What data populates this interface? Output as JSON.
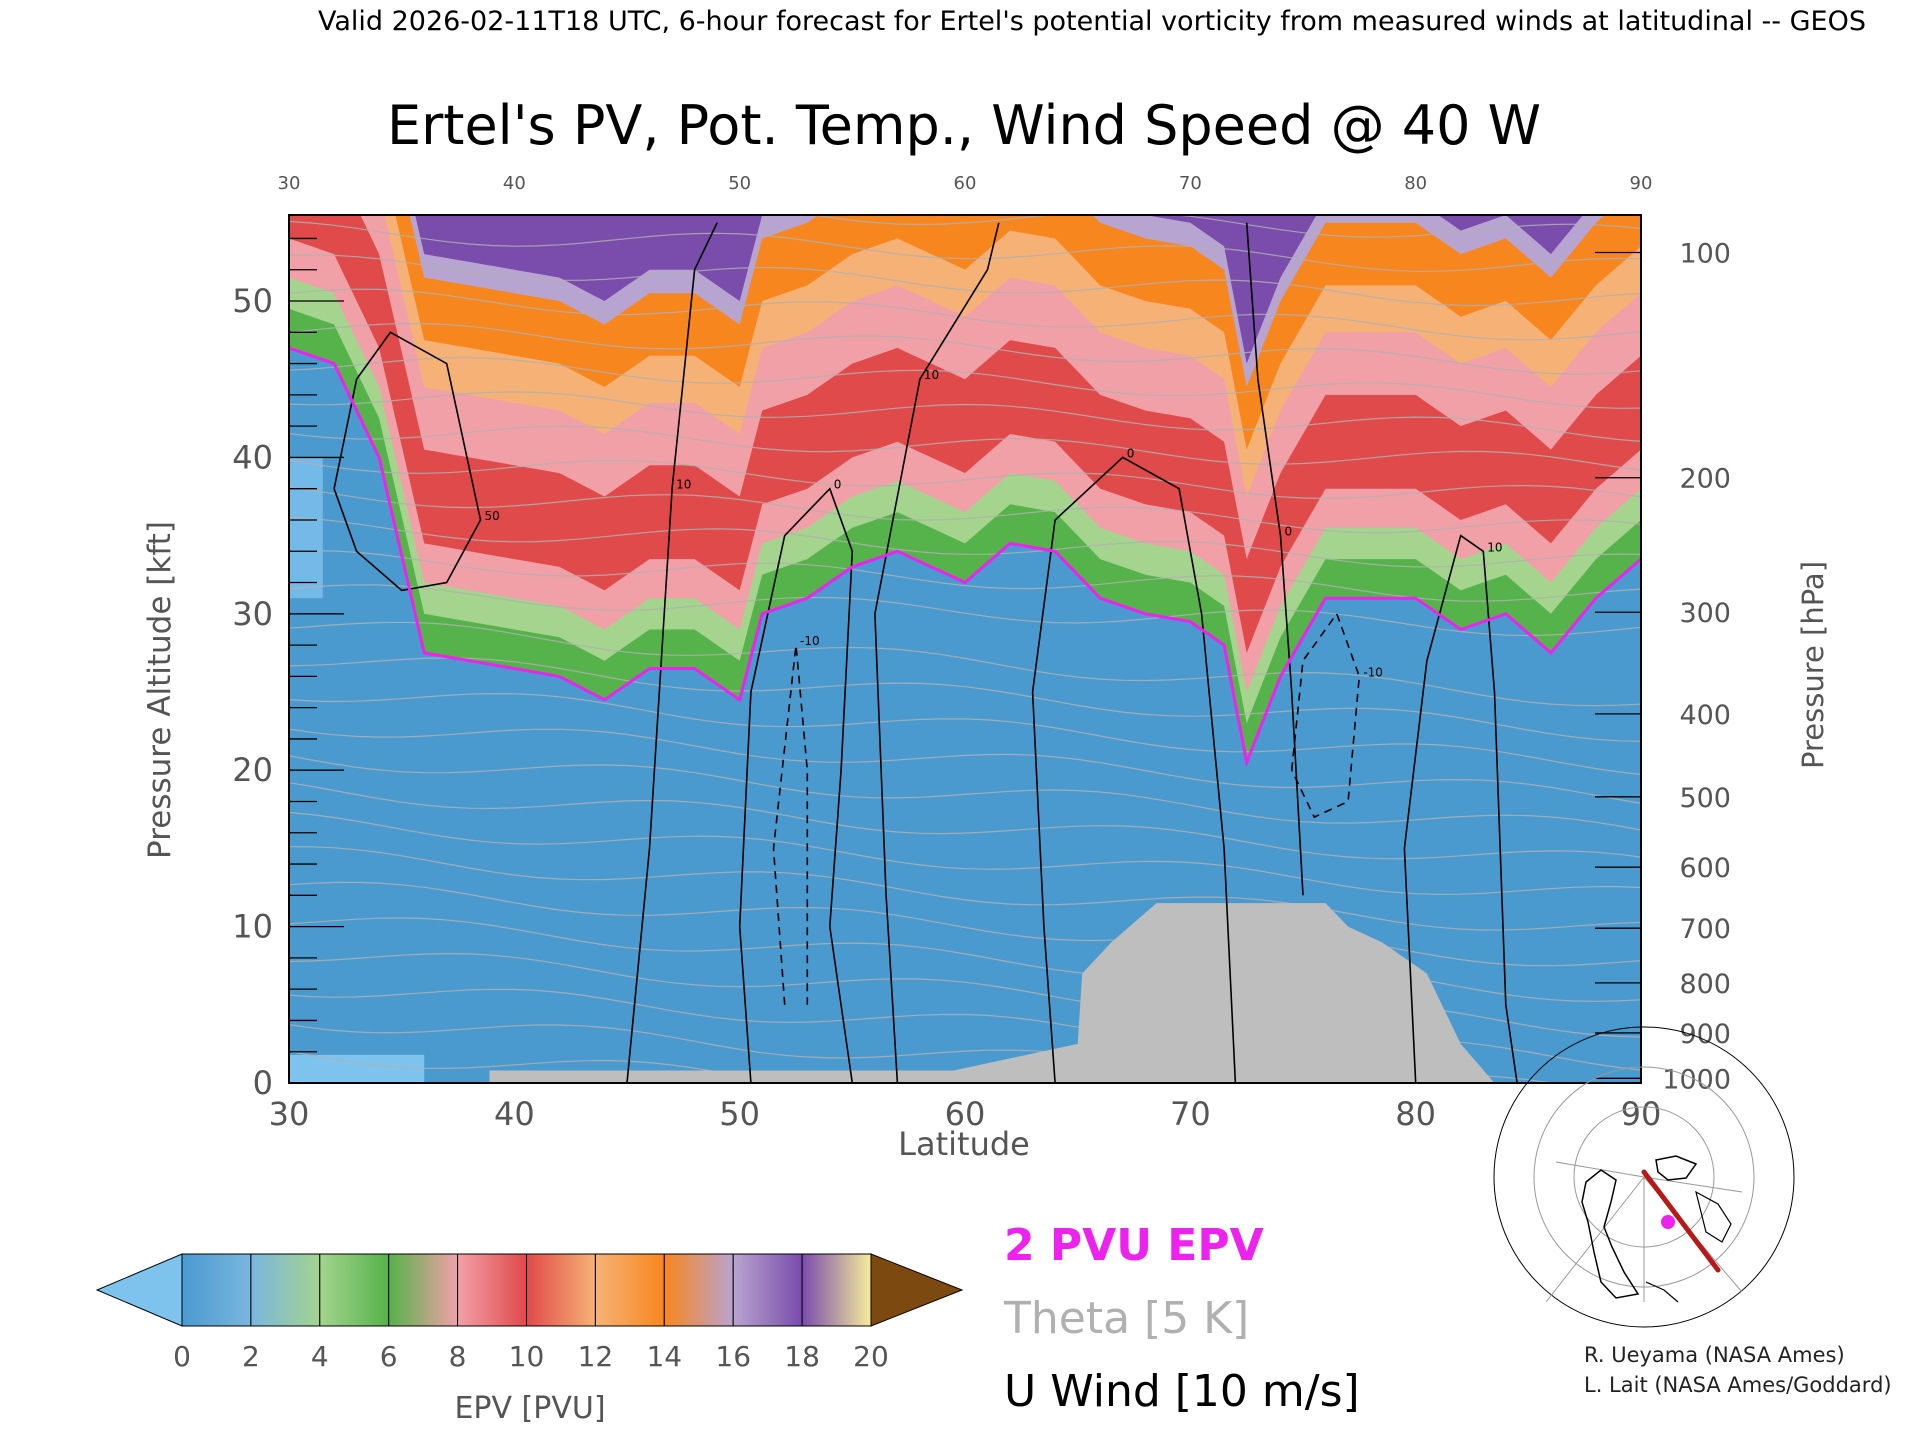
{
  "header": {
    "valid_line": "Valid 2026-02-11T18 UTC, 6-hour forecast for Ertel's potential vorticity from measured winds at latitudinal -- GEOS"
  },
  "chart_data": {
    "type": "heatmap",
    "title": "Ertel's PV, Pot. Temp., Wind Speed @ 40 W",
    "xlabel": "Latitude",
    "ylabel": "Pressure Altitude [kft]",
    "ylabel_right": "Pressure [hPa]",
    "xlim": [
      30,
      90
    ],
    "ylim": [
      0,
      55.5
    ],
    "x_ticks": [
      30,
      40,
      50,
      60,
      70,
      80,
      90
    ],
    "y_ticks": [
      0,
      10,
      20,
      30,
      40,
      50
    ],
    "y_minor_step": 2,
    "pressure_ticks": [
      {
        "hpa": 100,
        "kft": 53.1
      },
      {
        "hpa": 200,
        "kft": 38.7
      },
      {
        "hpa": 300,
        "kft": 30.1
      },
      {
        "hpa": 400,
        "kft": 23.6
      },
      {
        "hpa": 500,
        "kft": 18.3
      },
      {
        "hpa": 600,
        "kft": 13.8
      },
      {
        "hpa": 700,
        "kft": 9.9
      },
      {
        "hpa": 800,
        "kft": 6.4
      },
      {
        "hpa": 900,
        "kft": 3.2
      },
      {
        "hpa": 1000,
        "kft": 0.3
      }
    ],
    "colorbar": {
      "label": "EPV [PVU]",
      "ticks": [
        0,
        2,
        4,
        6,
        8,
        10,
        12,
        14,
        16,
        18,
        20
      ],
      "below_color": "#7ec2ee",
      "above_color": "#7c4a10",
      "colors": [
        "#4a9ad0",
        "#7ab6de",
        "#a4d48e",
        "#56b24a",
        "#f2a0a8",
        "#e04a4a",
        "#f6b276",
        "#f8861e",
        "#b8a4d0",
        "#7a4cac",
        "#f6ec9a",
        "#b8801c"
      ]
    },
    "tropopause_pv": 2,
    "tropopause_kft": [
      {
        "lat": 30,
        "kft": 47
      },
      {
        "lat": 32,
        "kft": 46
      },
      {
        "lat": 34,
        "kft": 40
      },
      {
        "lat": 36,
        "kft": 27.5
      },
      {
        "lat": 38,
        "kft": 27
      },
      {
        "lat": 40,
        "kft": 26.5
      },
      {
        "lat": 42,
        "kft": 26
      },
      {
        "lat": 44,
        "kft": 24.5
      },
      {
        "lat": 46,
        "kft": 26.5
      },
      {
        "lat": 48,
        "kft": 26.5
      },
      {
        "lat": 50,
        "kft": 24.5
      },
      {
        "lat": 51,
        "kft": 30
      },
      {
        "lat": 53,
        "kft": 31
      },
      {
        "lat": 55,
        "kft": 33
      },
      {
        "lat": 57,
        "kft": 34
      },
      {
        "lat": 60,
        "kft": 32
      },
      {
        "lat": 62,
        "kft": 34.5
      },
      {
        "lat": 64,
        "kft": 34
      },
      {
        "lat": 66,
        "kft": 31
      },
      {
        "lat": 68,
        "kft": 30
      },
      {
        "lat": 70,
        "kft": 29.5
      },
      {
        "lat": 71.5,
        "kft": 28
      },
      {
        "lat": 72.5,
        "kft": 20.5
      },
      {
        "lat": 74,
        "kft": 26
      },
      {
        "lat": 76,
        "kft": 31
      },
      {
        "lat": 78,
        "kft": 31
      },
      {
        "lat": 80,
        "kft": 31
      },
      {
        "lat": 82,
        "kft": 29
      },
      {
        "lat": 84,
        "kft": 30
      },
      {
        "lat": 86,
        "kft": 27.5
      },
      {
        "lat": 88,
        "kft": 31
      },
      {
        "lat": 90,
        "kft": 33.5
      }
    ],
    "terrain_kft": [
      {
        "lat": 38.9,
        "kft": 0.8
      },
      {
        "lat": 59.5,
        "kft": 0.8
      },
      {
        "lat": 65,
        "kft": 2.5
      },
      {
        "lat": 65.2,
        "kft": 7
      },
      {
        "lat": 66.5,
        "kft": 9
      },
      {
        "lat": 68.5,
        "kft": 11.5
      },
      {
        "lat": 76,
        "kft": 11.5
      },
      {
        "lat": 77,
        "kft": 10
      },
      {
        "lat": 78.5,
        "kft": 9
      },
      {
        "lat": 80.5,
        "kft": 7
      },
      {
        "lat": 82,
        "kft": 2.5
      },
      {
        "lat": 83.5,
        "kft": 0
      }
    ],
    "u_wind_contours": [
      {
        "label": "50",
        "dashed": false,
        "points": [
          [
            32,
            38
          ],
          [
            33,
            45
          ],
          [
            34.5,
            48
          ],
          [
            37,
            46
          ],
          [
            38.5,
            36
          ],
          [
            37,
            32
          ],
          [
            35,
            31.5
          ],
          [
            33,
            34
          ],
          [
            32,
            38
          ]
        ]
      },
      {
        "label": "10",
        "dashed": false,
        "points": [
          [
            45,
            0
          ],
          [
            46,
            15
          ],
          [
            47,
            38
          ],
          [
            48,
            52
          ],
          [
            49,
            55
          ]
        ]
      },
      {
        "label": "0",
        "dashed": false,
        "points": [
          [
            50.5,
            0
          ],
          [
            50,
            10
          ],
          [
            50.5,
            25
          ],
          [
            52,
            35
          ],
          [
            54,
            38
          ],
          [
            55,
            34
          ],
          [
            54.5,
            20
          ],
          [
            54,
            10
          ],
          [
            55,
            0
          ]
        ]
      },
      {
        "label": "10",
        "dashed": false,
        "points": [
          [
            57,
            0
          ],
          [
            56.5,
            12
          ],
          [
            56,
            30
          ],
          [
            58,
            45
          ],
          [
            61,
            52
          ],
          [
            61.5,
            55
          ]
        ]
      },
      {
        "label": "0",
        "dashed": false,
        "points": [
          [
            64,
            0
          ],
          [
            63.5,
            10
          ],
          [
            63,
            25
          ],
          [
            64,
            36
          ],
          [
            67,
            40
          ],
          [
            69.5,
            38
          ],
          [
            70.5,
            30
          ],
          [
            71.5,
            15
          ],
          [
            72,
            0
          ]
        ]
      },
      {
        "label": "0",
        "dashed": false,
        "points": [
          [
            72.5,
            55
          ],
          [
            73,
            45
          ],
          [
            74,
            35
          ],
          [
            74.5,
            25
          ],
          [
            75,
            12
          ]
        ]
      },
      {
        "label": "10",
        "dashed": false,
        "points": [
          [
            80,
            0
          ],
          [
            79.5,
            15
          ],
          [
            80.5,
            27
          ],
          [
            82,
            35
          ],
          [
            83,
            34
          ],
          [
            83.5,
            25
          ],
          [
            84,
            5
          ],
          [
            84.5,
            0
          ]
        ]
      },
      {
        "label": "-10",
        "dashed": true,
        "points": [
          [
            52,
            5
          ],
          [
            51.5,
            15
          ],
          [
            52.5,
            28
          ],
          [
            53,
            20
          ],
          [
            53,
            5
          ]
        ]
      },
      {
        "label": "-10",
        "dashed": true,
        "points": [
          [
            74.5,
            20
          ],
          [
            75,
            27
          ],
          [
            76.5,
            30
          ],
          [
            77.5,
            26
          ],
          [
            77,
            18
          ],
          [
            75.5,
            17
          ],
          [
            74.5,
            20
          ]
        ]
      }
    ]
  },
  "legend": {
    "pv_label": "2 PVU EPV",
    "theta_label": "Theta [5 K]",
    "wind_label": "U Wind [10 m/s]"
  },
  "colors": {
    "pv_line": "#ee22ee",
    "theta_line": "#b0b0b0",
    "wind_line": "#000000",
    "terrain": "#bebebe",
    "map_track": "#b81818"
  },
  "credits": {
    "line1": "R. Ueyama (NASA Ames)",
    "line2": "L. Lait (NASA Ames/Goddard)"
  },
  "inset": {
    "icon": "north-polar-map-icon"
  }
}
